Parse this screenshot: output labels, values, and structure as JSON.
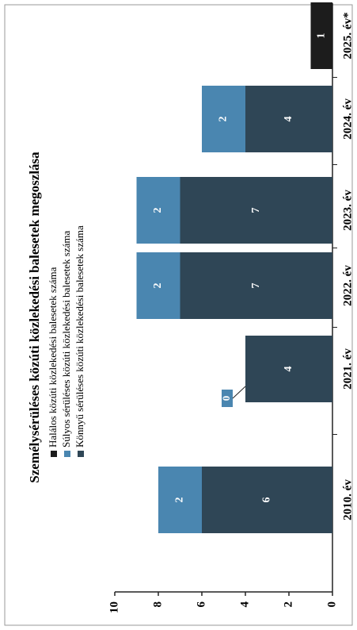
{
  "chart_data": {
    "type": "bar",
    "stacked": true,
    "title": "Személysérüléses közúti közlekedési balesetek megoszlása",
    "categories": [
      "2010. év",
      "2021. év",
      "2022. év",
      "2023. év",
      "2024. év",
      "2025. év*"
    ],
    "series": [
      {
        "name": "Halálos közúti közlekedési balesetek száma",
        "color": "#1c1c1c",
        "values": [
          null,
          null,
          null,
          null,
          null,
          1
        ]
      },
      {
        "name": "Súlyos sérüléses közúti közlekedési balesetek száma",
        "color": "#4a86b0",
        "values": [
          2,
          0,
          2,
          2,
          2,
          null
        ]
      },
      {
        "name": "Könnyű sérüléses közúti közlekedési balesetek száma",
        "color": "#2f4656",
        "values": [
          6,
          4,
          7,
          7,
          4,
          null
        ]
      }
    ],
    "ylim": [
      0,
      10
    ],
    "yticks": [
      0,
      2,
      4,
      6,
      8,
      10
    ],
    "grid": false
  }
}
